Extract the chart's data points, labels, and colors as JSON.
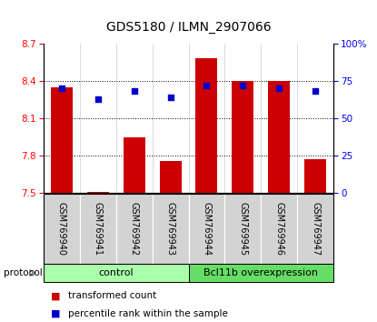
{
  "title": "GDS5180 / ILMN_2907066",
  "samples": [
    "GSM769940",
    "GSM769941",
    "GSM769942",
    "GSM769943",
    "GSM769944",
    "GSM769945",
    "GSM769946",
    "GSM769947"
  ],
  "transformed_count": [
    8.35,
    7.51,
    7.95,
    7.76,
    8.58,
    8.4,
    8.4,
    7.77
  ],
  "percentile_rank": [
    70,
    63,
    68,
    64,
    72,
    72,
    70,
    68
  ],
  "bar_color": "#cc0000",
  "dot_color": "#0000cc",
  "ylim_left": [
    7.5,
    8.7
  ],
  "ylim_right": [
    0,
    100
  ],
  "yticks_left": [
    7.5,
    7.8,
    8.1,
    8.4,
    8.7
  ],
  "yticks_right": [
    0,
    25,
    50,
    75,
    100
  ],
  "ytick_labels_right": [
    "0",
    "25",
    "50",
    "75",
    "100%"
  ],
  "group_labels": [
    "control",
    "Bcl11b overexpression"
  ],
  "group_ranges": [
    [
      0,
      3
    ],
    [
      4,
      7
    ]
  ],
  "group_colors": [
    "#aaffaa",
    "#66dd66"
  ],
  "protocol_label": "protocol",
  "protocol_arrow_color": "#888888",
  "legend_entries": [
    "transformed count",
    "percentile rank within the sample"
  ],
  "legend_colors": [
    "#cc0000",
    "#0000cc"
  ],
  "grid_yticks": [
    7.8,
    8.1,
    8.4
  ],
  "bar_bottom": 7.5,
  "bar_width": 0.6
}
